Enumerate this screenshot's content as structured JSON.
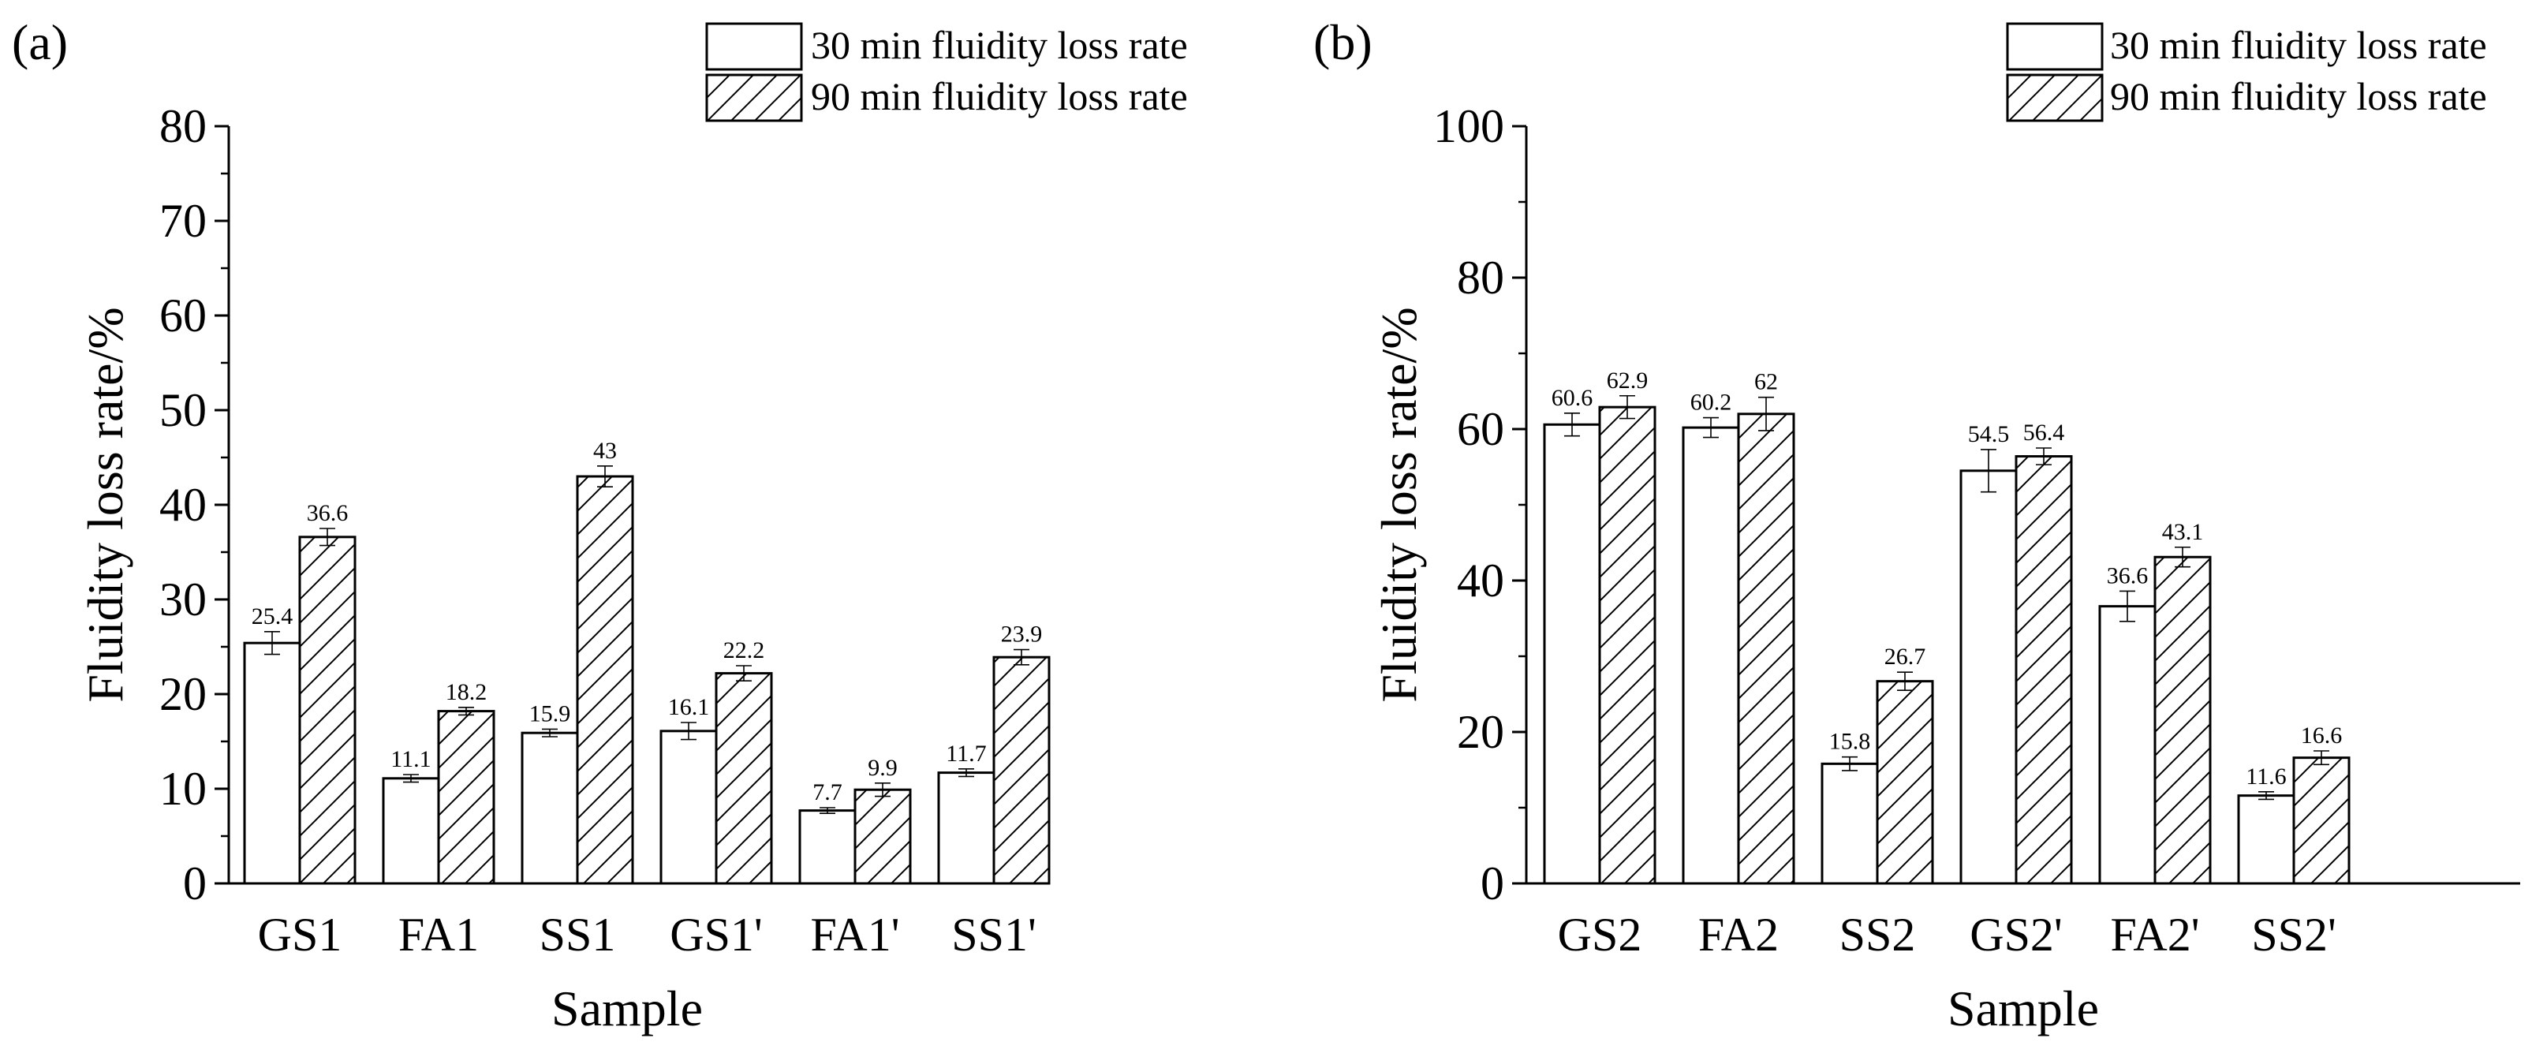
{
  "figure": {
    "panels": [
      "(a)",
      "(b)"
    ]
  },
  "chart_data": [
    {
      "type": "bar",
      "panel_label": "(a)",
      "categories": [
        "GS1",
        "FA1",
        "SS1",
        "GS1'",
        "FA1'",
        "SS1'"
      ],
      "series": [
        {
          "name": "30 min fluidity loss rate",
          "pattern": "none",
          "values": [
            25.4,
            11.1,
            15.9,
            16.1,
            7.7,
            11.7
          ],
          "errors": [
            1.2,
            0.4,
            0.4,
            0.9,
            0.3,
            0.4
          ]
        },
        {
          "name": "90 min fluidity loss rate",
          "pattern": "hatch",
          "values": [
            36.6,
            18.2,
            43,
            22.2,
            9.9,
            23.9
          ],
          "errors": [
            0.9,
            0.4,
            1.1,
            0.8,
            0.7,
            0.8
          ]
        }
      ],
      "data_labels": [
        [
          "25.4",
          "11.1",
          "15.9",
          "16.1",
          "7.7",
          "11.7"
        ],
        [
          "36.6",
          "18.2",
          "43",
          "22.2",
          "9.9",
          "23.9"
        ]
      ],
      "xlabel": "Sample",
      "ylabel": "Fluidity loss rate/%",
      "ylim": [
        0,
        80
      ],
      "yticks": [
        0,
        10,
        20,
        30,
        40,
        50,
        60,
        70,
        80
      ],
      "ytick_labels": [
        "0",
        "10",
        "20",
        "30",
        "40",
        "50",
        "60",
        "70",
        "80"
      ],
      "legend_position": "top-right",
      "grid": false
    },
    {
      "type": "bar",
      "panel_label": "(b)",
      "categories": [
        "GS2",
        "FA2",
        "SS2",
        "GS2'",
        "FA2'",
        "SS2'"
      ],
      "series": [
        {
          "name": "30 min fluidity loss rate",
          "pattern": "none",
          "values": [
            60.6,
            60.2,
            15.8,
            54.5,
            36.6,
            11.6
          ],
          "errors": [
            1.5,
            1.3,
            0.9,
            2.8,
            2.0,
            0.5
          ]
        },
        {
          "name": "90 min fluidity loss rate",
          "pattern": "hatch",
          "values": [
            62.9,
            62,
            26.7,
            56.4,
            43.1,
            16.6
          ],
          "errors": [
            1.5,
            2.2,
            1.2,
            1.1,
            1.3,
            0.9
          ]
        }
      ],
      "data_labels": [
        [
          "60.6",
          "60.2",
          "15.8",
          "54.5",
          "36.6",
          "11.6"
        ],
        [
          "62.9",
          "62",
          "26.7",
          "56.4",
          "43.1",
          "16.6"
        ]
      ],
      "xlabel": "Sample",
      "ylabel": "Fluidity loss rate/%",
      "ylim": [
        0,
        100
      ],
      "yticks": [
        0,
        20,
        40,
        60,
        80,
        100
      ],
      "ytick_labels": [
        "0",
        "20",
        "40",
        "60",
        "80",
        "100"
      ],
      "legend_position": "top-right",
      "grid": false
    }
  ]
}
